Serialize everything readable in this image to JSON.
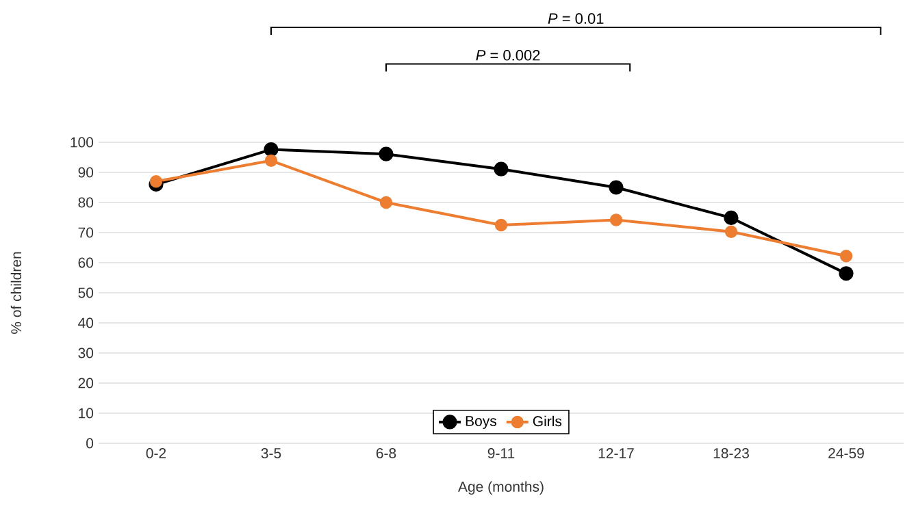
{
  "chart_data": {
    "type": "line",
    "xlabel": "Age (months)",
    "ylabel": "% of children",
    "categories": [
      "0-2",
      "3-5",
      "6-8",
      "9-11",
      "12-17",
      "18-23",
      "24-59"
    ],
    "series": [
      {
        "name": "Boys",
        "color": "#000000",
        "values": [
          86,
          97.6,
          96.1,
          91.1,
          85,
          74.9,
          56.4
        ]
      },
      {
        "name": "Girls",
        "color": "#ed7d31",
        "values": [
          87,
          93.9,
          80,
          72.5,
          74.2,
          70.3,
          62.2
        ]
      }
    ],
    "ylim": [
      0,
      100
    ],
    "yticks": [
      0,
      10,
      20,
      30,
      40,
      50,
      60,
      70,
      80,
      90,
      100
    ],
    "grid": "y",
    "legend": "bottom",
    "marker": "circle",
    "line_style": "solid",
    "annotations": [
      "*P* = 0.01",
      "*P* = 0.002"
    ]
  }
}
